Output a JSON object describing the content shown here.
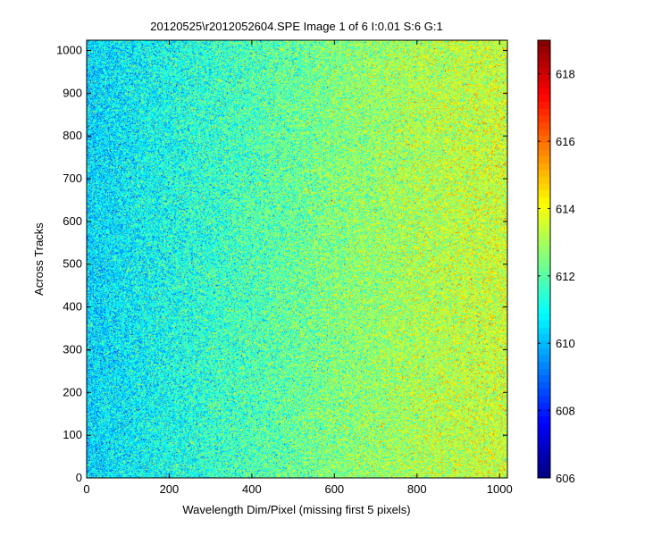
{
  "chart_data": {
    "type": "heatmap",
    "title": "20120525\\r2012052604.SPE  Image 1 of 6  I:0.01  S:6  G:1",
    "xlabel": "Wavelength Dim/Pixel (missing first 5 pixels)",
    "ylabel": "Across Tracks",
    "xlim": [
      0,
      1019
    ],
    "ylim": [
      0,
      1024
    ],
    "x_ticks": [
      0,
      200,
      400,
      600,
      800,
      1000
    ],
    "y_ticks": [
      0,
      100,
      200,
      300,
      400,
      500,
      600,
      700,
      800,
      900,
      1000
    ],
    "colormap": "jet",
    "clim": [
      606,
      619
    ],
    "colorbar_ticks": [
      606,
      608,
      610,
      612,
      614,
      616,
      618
    ],
    "field_trend": {
      "x": [
        0,
        200,
        400,
        600,
        800,
        1000
      ],
      "mean": [
        610.4,
        611.1,
        611.8,
        612.5,
        613.1,
        613.5
      ]
    },
    "noise_std": 1.1
  }
}
